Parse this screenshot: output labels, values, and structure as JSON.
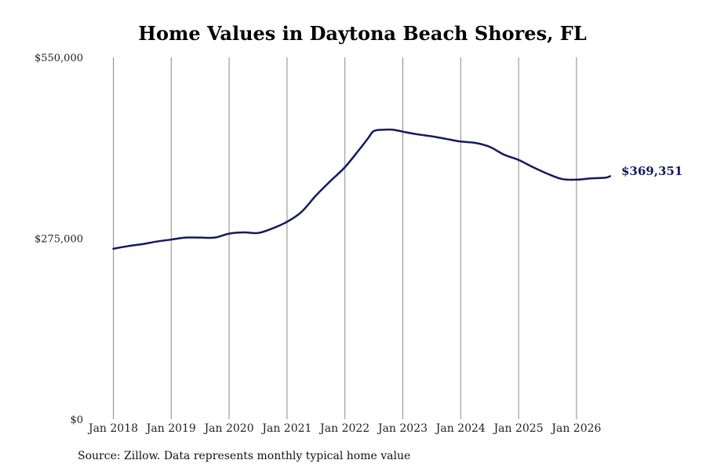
{
  "chart_data": {
    "type": "line",
    "title": "Home Values in Daytona Beach Shores, FL",
    "xlabel": "",
    "ylabel": "",
    "ylim": [
      0,
      550000
    ],
    "yticks": [
      {
        "value": 0,
        "label": "$0"
      },
      {
        "value": 275000,
        "label": "$275,000"
      },
      {
        "value": 550000,
        "label": "$550,000"
      }
    ],
    "xticks": [
      {
        "value": 2018,
        "label": "Jan 2018"
      },
      {
        "value": 2019,
        "label": "Jan 2019"
      },
      {
        "value": 2020,
        "label": "Jan 2020"
      },
      {
        "value": 2021,
        "label": "Jan 2021"
      },
      {
        "value": 2022,
        "label": "Jan 2022"
      },
      {
        "value": 2023,
        "label": "Jan 2023"
      },
      {
        "value": 2024,
        "label": "Jan 2024"
      },
      {
        "value": 2025,
        "label": "Jan 2025"
      },
      {
        "value": 2026,
        "label": "Jan 2026"
      }
    ],
    "xlim": [
      2017.75,
      2027.15
    ],
    "grid": "vertical lines at year ticks",
    "line_color": "#141a5e",
    "end_label": "$369,351",
    "series": [
      {
        "x": [
          2018.0,
          2018.25,
          2018.5,
          2018.75,
          2019.0,
          2019.25,
          2019.5,
          2019.75,
          2020.0,
          2020.25,
          2020.5,
          2020.75,
          2021.0,
          2021.25,
          2021.5,
          2021.75,
          2022.0,
          2022.25,
          2022.4,
          2022.5,
          2022.67,
          2022.83,
          2023.0,
          2023.25,
          2023.5,
          2023.75,
          2024.0,
          2024.25,
          2024.5,
          2024.75,
          2025.0,
          2025.25,
          2025.5,
          2025.75,
          2026.0,
          2026.25,
          2026.5,
          2026.58
        ],
        "y": [
          259000,
          263000,
          266000,
          270000,
          273000,
          276000,
          276000,
          276000,
          282000,
          284000,
          283000,
          290000,
          300000,
          315000,
          340000,
          362000,
          383000,
          410000,
          427000,
          438000,
          440000,
          440000,
          437000,
          433000,
          430000,
          426000,
          422000,
          420000,
          414000,
          402000,
          394000,
          383000,
          373000,
          365000,
          364000,
          366000,
          367000,
          369351
        ]
      }
    ]
  },
  "source_note": "Source: Zillow. Data represents monthly typical home value"
}
